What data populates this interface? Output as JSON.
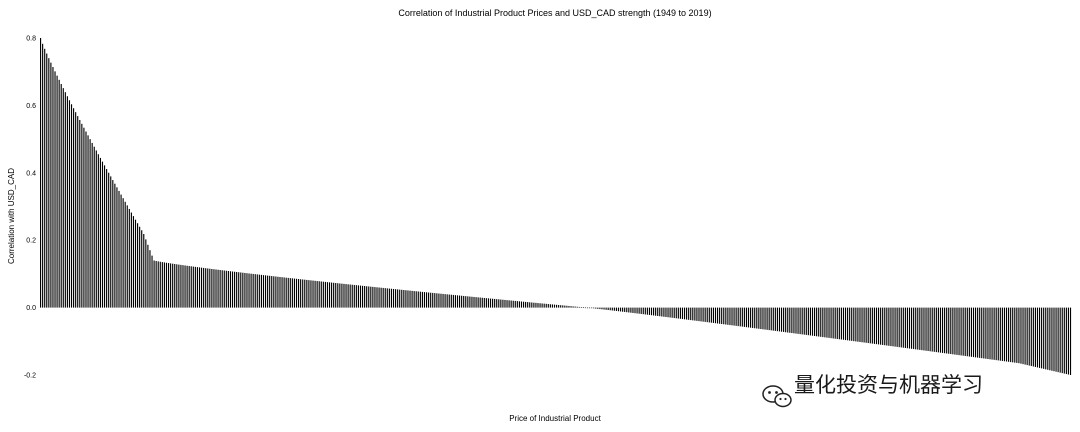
{
  "chart_data": {
    "type": "bar",
    "title": "Correlation of Industrial Product Prices and USD_CAD strength (1949 to 2019)",
    "xlabel": "Price of Industrial Product",
    "ylabel": "Correlation with USD_CAD",
    "ylim": [
      -0.2,
      0.8
    ],
    "yticks": [
      -0.2,
      0.0,
      0.2,
      0.4,
      0.6,
      0.8
    ],
    "ytick_labels": [
      "-0.2",
      "0.0",
      "0.2",
      "0.4",
      "0.6",
      "0.8"
    ],
    "bar_count": 500,
    "sorted": "descending",
    "max_value": 0.8,
    "min_value": -0.2,
    "grid": false,
    "legend": "none",
    "bar_color": "#000000"
  },
  "watermark": {
    "text": "量化投资与机器学习",
    "icon": "wechat-icon"
  }
}
